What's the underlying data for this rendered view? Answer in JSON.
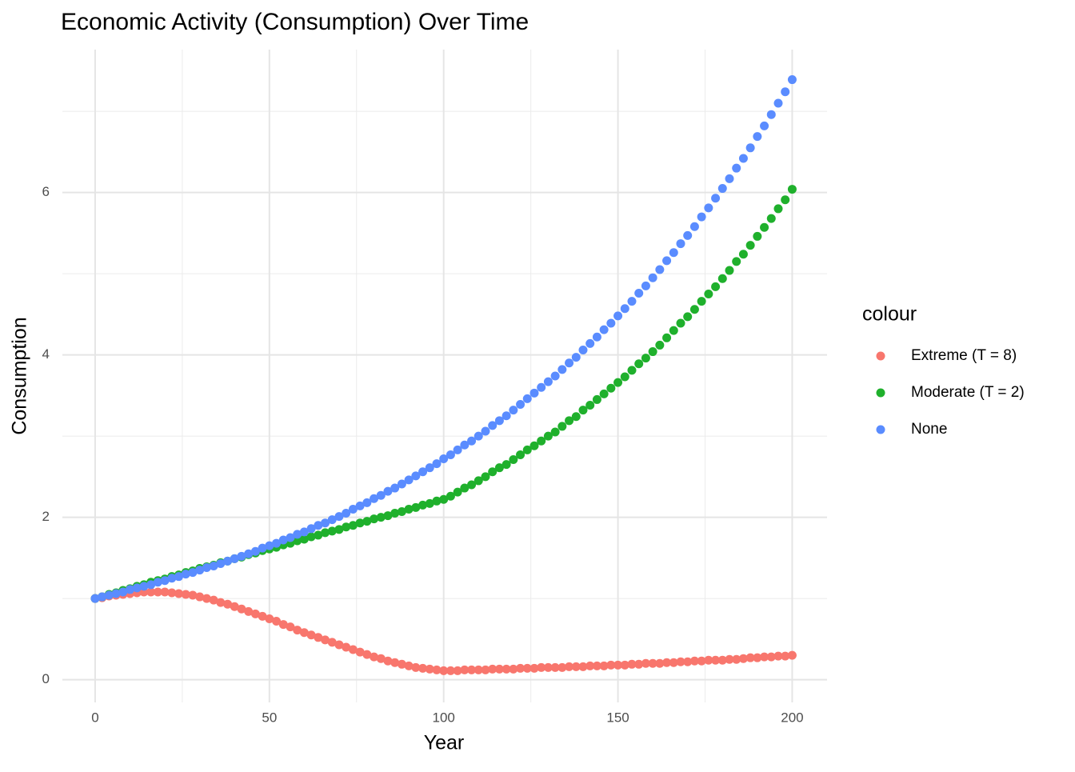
{
  "chart_data": {
    "type": "scatter",
    "title": "Economic Activity (Consumption) Over Time",
    "x_label": "Year",
    "y_label": "Consumption",
    "legend_title": "colour",
    "legend_position": "right",
    "grid": true,
    "xlim": [
      -9.4,
      210
    ],
    "ylim": [
      -0.28,
      7.76
    ],
    "xticks": [
      0,
      50,
      100,
      150,
      200
    ],
    "yticks": [
      0,
      2,
      4,
      6
    ],
    "x": [
      0,
      2,
      4,
      6,
      8,
      10,
      12,
      14,
      16,
      18,
      20,
      22,
      24,
      26,
      28,
      30,
      32,
      34,
      36,
      38,
      40,
      42,
      44,
      46,
      48,
      50,
      52,
      54,
      56,
      58,
      60,
      62,
      64,
      66,
      68,
      70,
      72,
      74,
      76,
      78,
      80,
      82,
      84,
      86,
      88,
      90,
      92,
      94,
      96,
      98,
      100,
      102,
      104,
      106,
      108,
      110,
      112,
      114,
      116,
      118,
      120,
      122,
      124,
      126,
      128,
      130,
      132,
      134,
      136,
      138,
      140,
      142,
      144,
      146,
      148,
      150,
      152,
      154,
      156,
      158,
      160,
      162,
      164,
      166,
      168,
      170,
      172,
      174,
      176,
      178,
      180,
      182,
      184,
      186,
      188,
      190,
      192,
      194,
      196,
      198,
      200
    ],
    "series": [
      {
        "name": "Extreme (T = 8)",
        "color": "#f8766d",
        "values": [
          1.0,
          1.01,
          1.03,
          1.04,
          1.05,
          1.06,
          1.07,
          1.08,
          1.08,
          1.08,
          1.08,
          1.07,
          1.06,
          1.05,
          1.04,
          1.02,
          1.0,
          0.98,
          0.95,
          0.93,
          0.9,
          0.87,
          0.84,
          0.81,
          0.78,
          0.75,
          0.72,
          0.68,
          0.65,
          0.61,
          0.58,
          0.55,
          0.52,
          0.49,
          0.46,
          0.43,
          0.4,
          0.37,
          0.34,
          0.31,
          0.28,
          0.26,
          0.23,
          0.21,
          0.19,
          0.17,
          0.15,
          0.14,
          0.13,
          0.12,
          0.11,
          0.11,
          0.11,
          0.12,
          0.12,
          0.12,
          0.12,
          0.13,
          0.13,
          0.13,
          0.13,
          0.14,
          0.14,
          0.14,
          0.15,
          0.15,
          0.15,
          0.15,
          0.16,
          0.16,
          0.16,
          0.17,
          0.17,
          0.17,
          0.18,
          0.18,
          0.18,
          0.19,
          0.19,
          0.2,
          0.2,
          0.2,
          0.21,
          0.21,
          0.22,
          0.22,
          0.23,
          0.23,
          0.24,
          0.24,
          0.24,
          0.25,
          0.25,
          0.26,
          0.27,
          0.27,
          0.28,
          0.28,
          0.29,
          0.29,
          0.3
        ]
      },
      {
        "name": "Moderate (T = 2)",
        "color": "#1fb02c",
        "values": [
          1.0,
          1.02,
          1.05,
          1.07,
          1.1,
          1.12,
          1.15,
          1.17,
          1.2,
          1.22,
          1.24,
          1.27,
          1.29,
          1.32,
          1.34,
          1.37,
          1.39,
          1.41,
          1.44,
          1.46,
          1.49,
          1.51,
          1.54,
          1.56,
          1.59,
          1.61,
          1.63,
          1.66,
          1.68,
          1.71,
          1.73,
          1.76,
          1.78,
          1.81,
          1.83,
          1.85,
          1.88,
          1.9,
          1.93,
          1.95,
          1.98,
          2.0,
          2.02,
          2.05,
          2.07,
          2.1,
          2.12,
          2.15,
          2.17,
          2.2,
          2.22,
          2.26,
          2.31,
          2.36,
          2.4,
          2.45,
          2.5,
          2.56,
          2.61,
          2.65,
          2.71,
          2.77,
          2.83,
          2.88,
          2.94,
          3.0,
          3.05,
          3.12,
          3.19,
          3.24,
          3.32,
          3.38,
          3.45,
          3.52,
          3.59,
          3.66,
          3.73,
          3.81,
          3.89,
          3.96,
          4.04,
          4.12,
          4.21,
          4.3,
          4.39,
          4.47,
          4.56,
          4.66,
          4.75,
          4.84,
          4.94,
          5.04,
          5.15,
          5.24,
          5.35,
          5.46,
          5.57,
          5.68,
          5.8,
          5.91,
          6.04
        ]
      },
      {
        "name": "None",
        "color": "#5a8cff",
        "values": [
          1.0,
          1.02,
          1.04,
          1.06,
          1.08,
          1.11,
          1.13,
          1.15,
          1.17,
          1.2,
          1.22,
          1.25,
          1.27,
          1.3,
          1.32,
          1.35,
          1.38,
          1.4,
          1.43,
          1.46,
          1.49,
          1.52,
          1.55,
          1.58,
          1.62,
          1.65,
          1.68,
          1.72,
          1.75,
          1.79,
          1.82,
          1.86,
          1.9,
          1.93,
          1.97,
          2.01,
          2.05,
          2.1,
          2.14,
          2.18,
          2.23,
          2.27,
          2.32,
          2.36,
          2.41,
          2.46,
          2.51,
          2.56,
          2.61,
          2.66,
          2.72,
          2.77,
          2.83,
          2.89,
          2.94,
          3.0,
          3.06,
          3.13,
          3.19,
          3.25,
          3.32,
          3.39,
          3.46,
          3.53,
          3.6,
          3.67,
          3.74,
          3.82,
          3.9,
          3.97,
          4.06,
          4.14,
          4.22,
          4.31,
          4.39,
          4.48,
          4.57,
          4.66,
          4.76,
          4.85,
          4.95,
          5.05,
          5.16,
          5.26,
          5.37,
          5.47,
          5.58,
          5.7,
          5.81,
          5.93,
          6.05,
          6.17,
          6.3,
          6.42,
          6.55,
          6.69,
          6.82,
          6.96,
          7.1,
          7.24,
          7.39
        ]
      }
    ]
  }
}
